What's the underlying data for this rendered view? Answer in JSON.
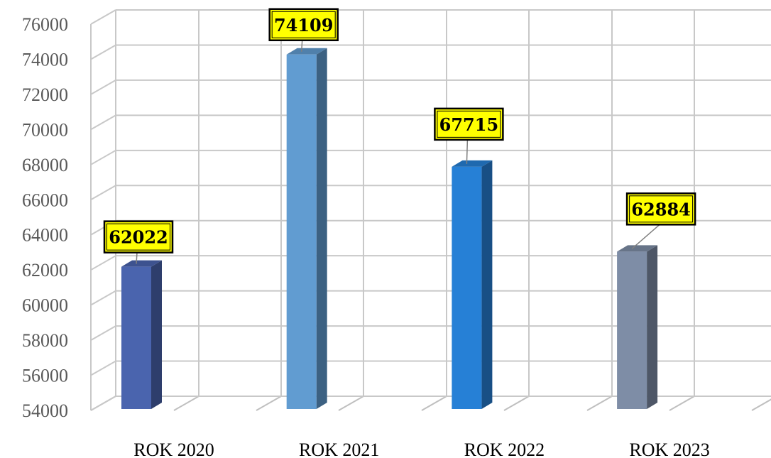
{
  "chart_data": {
    "type": "bar",
    "title": "",
    "categories": [
      "ROK 2020",
      "ROK 2021",
      "ROK 2022",
      "ROK 2023"
    ],
    "values": [
      62022,
      74109,
      67715,
      62884
    ],
    "ylim": [
      54000,
      76000
    ],
    "yticks": [
      54000,
      56000,
      58000,
      60000,
      62000,
      64000,
      66000,
      68000,
      70000,
      72000,
      74000,
      76000
    ],
    "ytick_labels": [
      "54000",
      "56000",
      "58000",
      "60000",
      "62000",
      "64000",
      "66000",
      "68000",
      "70000",
      "72000",
      "74000",
      "76000"
    ],
    "data_labels": [
      "62022",
      "74109",
      "67715",
      "62884"
    ],
    "xlabel": "",
    "ylabel": "",
    "grid": true,
    "bar_colors": [
      "#4A64AE",
      "#619CD1",
      "#2680D6",
      "#7E8DA6"
    ],
    "label_background": "#FFFF00"
  }
}
